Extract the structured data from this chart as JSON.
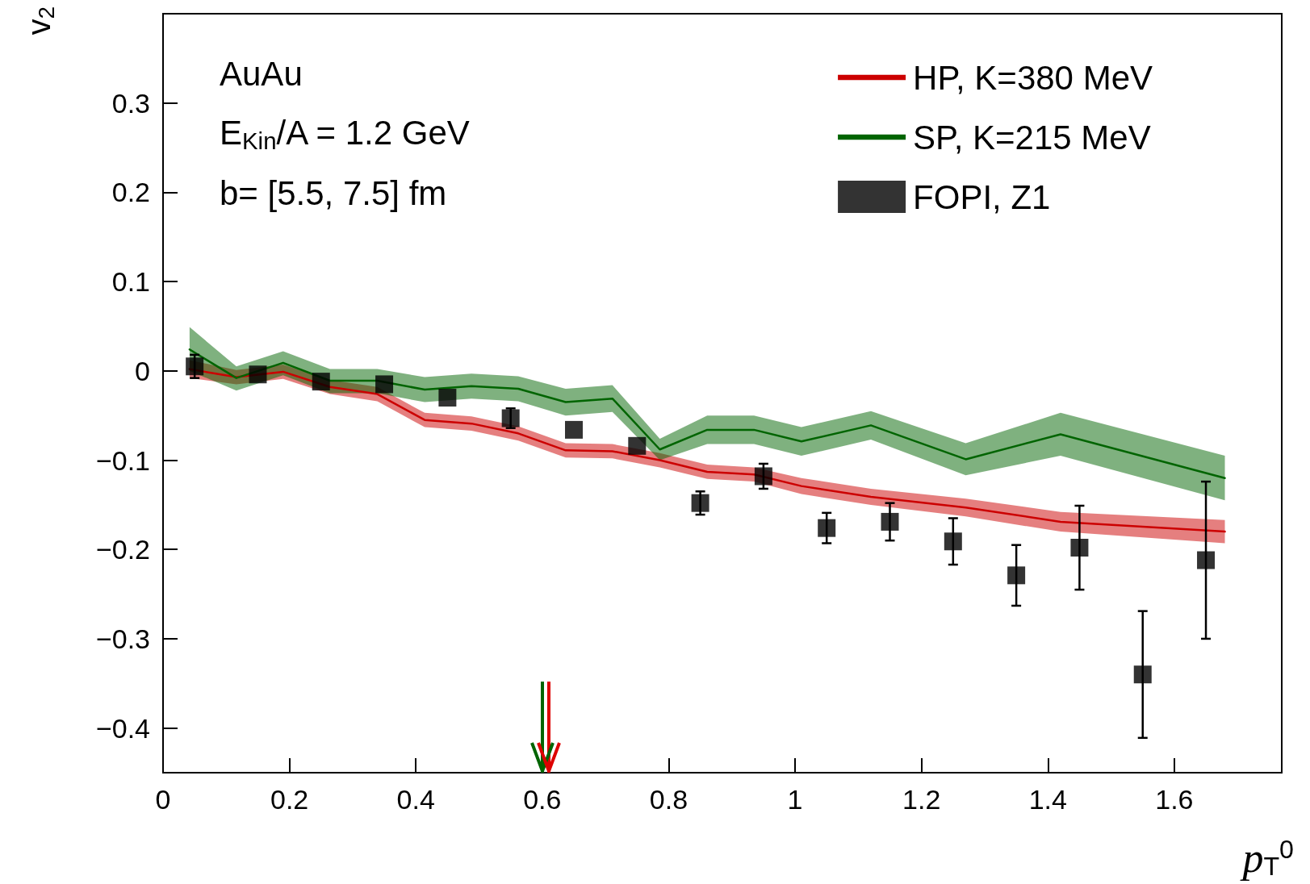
{
  "chart_data": {
    "type": "line",
    "xlabel": "p$_{T}$$^{0}$",
    "ylabel": "v$_{2}$",
    "annotations": [
      "AuAu",
      "E$_{Kin}$/A = 1.2 GeV",
      "b= [5.5, 7.5] fm"
    ],
    "xlim": [
      0,
      1.77
    ],
    "xticks": [
      0,
      0.2,
      0.4,
      0.6,
      0.8,
      1,
      1.2,
      1.4,
      1.6
    ],
    "ylim": [
      -0.45,
      0.4
    ],
    "yticks": [
      {
        "value": -0.4,
        "label": "−0.4"
      },
      {
        "value": -0.3,
        "label": "−0.3"
      },
      {
        "value": -0.2,
        "label": "−0.2"
      },
      {
        "value": -0.1,
        "label": "−0.1"
      },
      0,
      0.1,
      0.2,
      0.3
    ],
    "grid": false,
    "legend": "top right",
    "ref_lines": [
      {
        "axis": "x",
        "value": 0.6,
        "color": "#006400"
      },
      {
        "axis": "x",
        "value": 0.61,
        "color": "#dd0000"
      }
    ],
    "series": [
      {
        "name": "HP, K=380 MeV",
        "marker": "none",
        "color": "#cc0000",
        "x": [
          0.042,
          0.116,
          0.19,
          0.264,
          0.339,
          0.414,
          0.488,
          0.562,
          0.637,
          0.711,
          0.786,
          0.861,
          0.935,
          1.01,
          1.12,
          1.27,
          1.42,
          1.68
        ],
        "values": [
          0.002,
          -0.007,
          -0.001,
          -0.018,
          -0.026,
          -0.055,
          -0.059,
          -0.07,
          -0.089,
          -0.09,
          -0.1,
          -0.113,
          -0.116,
          -0.129,
          -0.141,
          -0.153,
          -0.169,
          -0.18
        ],
        "lower": [
          -0.008,
          -0.015,
          -0.009,
          -0.026,
          -0.034,
          -0.063,
          -0.067,
          -0.078,
          -0.097,
          -0.098,
          -0.108,
          -0.121,
          -0.124,
          -0.138,
          -0.15,
          -0.163,
          -0.18,
          -0.193
        ],
        "upper": [
          0.012,
          0.001,
          0.007,
          -0.01,
          -0.018,
          -0.047,
          -0.051,
          -0.062,
          -0.081,
          -0.082,
          -0.092,
          -0.105,
          -0.108,
          -0.12,
          -0.132,
          -0.143,
          -0.158,
          -0.167
        ]
      },
      {
        "name": "SP, K=215 MeV",
        "marker": "none",
        "color": "#006400",
        "x": [
          0.042,
          0.116,
          0.19,
          0.264,
          0.339,
          0.414,
          0.488,
          0.562,
          0.637,
          0.711,
          0.786,
          0.861,
          0.935,
          1.01,
          1.12,
          1.27,
          1.42,
          1.68
        ],
        "values": [
          0.024,
          -0.008,
          0.009,
          -0.011,
          -0.011,
          -0.021,
          -0.017,
          -0.02,
          -0.035,
          -0.031,
          -0.088,
          -0.066,
          -0.066,
          -0.079,
          -0.061,
          -0.099,
          -0.071,
          -0.12
        ],
        "lower": [
          0.0,
          -0.022,
          -0.005,
          -0.025,
          -0.025,
          -0.035,
          -0.031,
          -0.034,
          -0.05,
          -0.046,
          -0.1,
          -0.082,
          -0.082,
          -0.095,
          -0.077,
          -0.117,
          -0.095,
          -0.145
        ],
        "upper": [
          0.049,
          0.005,
          0.022,
          0.002,
          0.002,
          -0.007,
          -0.003,
          -0.006,
          -0.02,
          -0.016,
          -0.076,
          -0.05,
          -0.05,
          -0.063,
          -0.045,
          -0.081,
          -0.047,
          -0.095
        ]
      },
      {
        "name": "FOPI, Z1",
        "type": "scatter",
        "marker": "square",
        "color": "#000000",
        "x": [
          0.05,
          0.15,
          0.25,
          0.35,
          0.45,
          0.55,
          0.65,
          0.75,
          0.85,
          0.95,
          1.05,
          1.15,
          1.25,
          1.35,
          1.45,
          1.55,
          1.65
        ],
        "values": [
          0.005,
          -0.004,
          -0.012,
          -0.015,
          -0.03,
          -0.053,
          -0.066,
          -0.084,
          -0.148,
          -0.118,
          -0.176,
          -0.169,
          -0.191,
          -0.229,
          -0.198,
          -0.34,
          -0.212
        ],
        "errors": [
          0.013,
          null,
          null,
          null,
          null,
          0.011,
          null,
          null,
          0.013,
          0.014,
          0.017,
          0.021,
          0.026,
          0.034,
          0.047,
          0.071,
          0.088
        ]
      }
    ]
  }
}
